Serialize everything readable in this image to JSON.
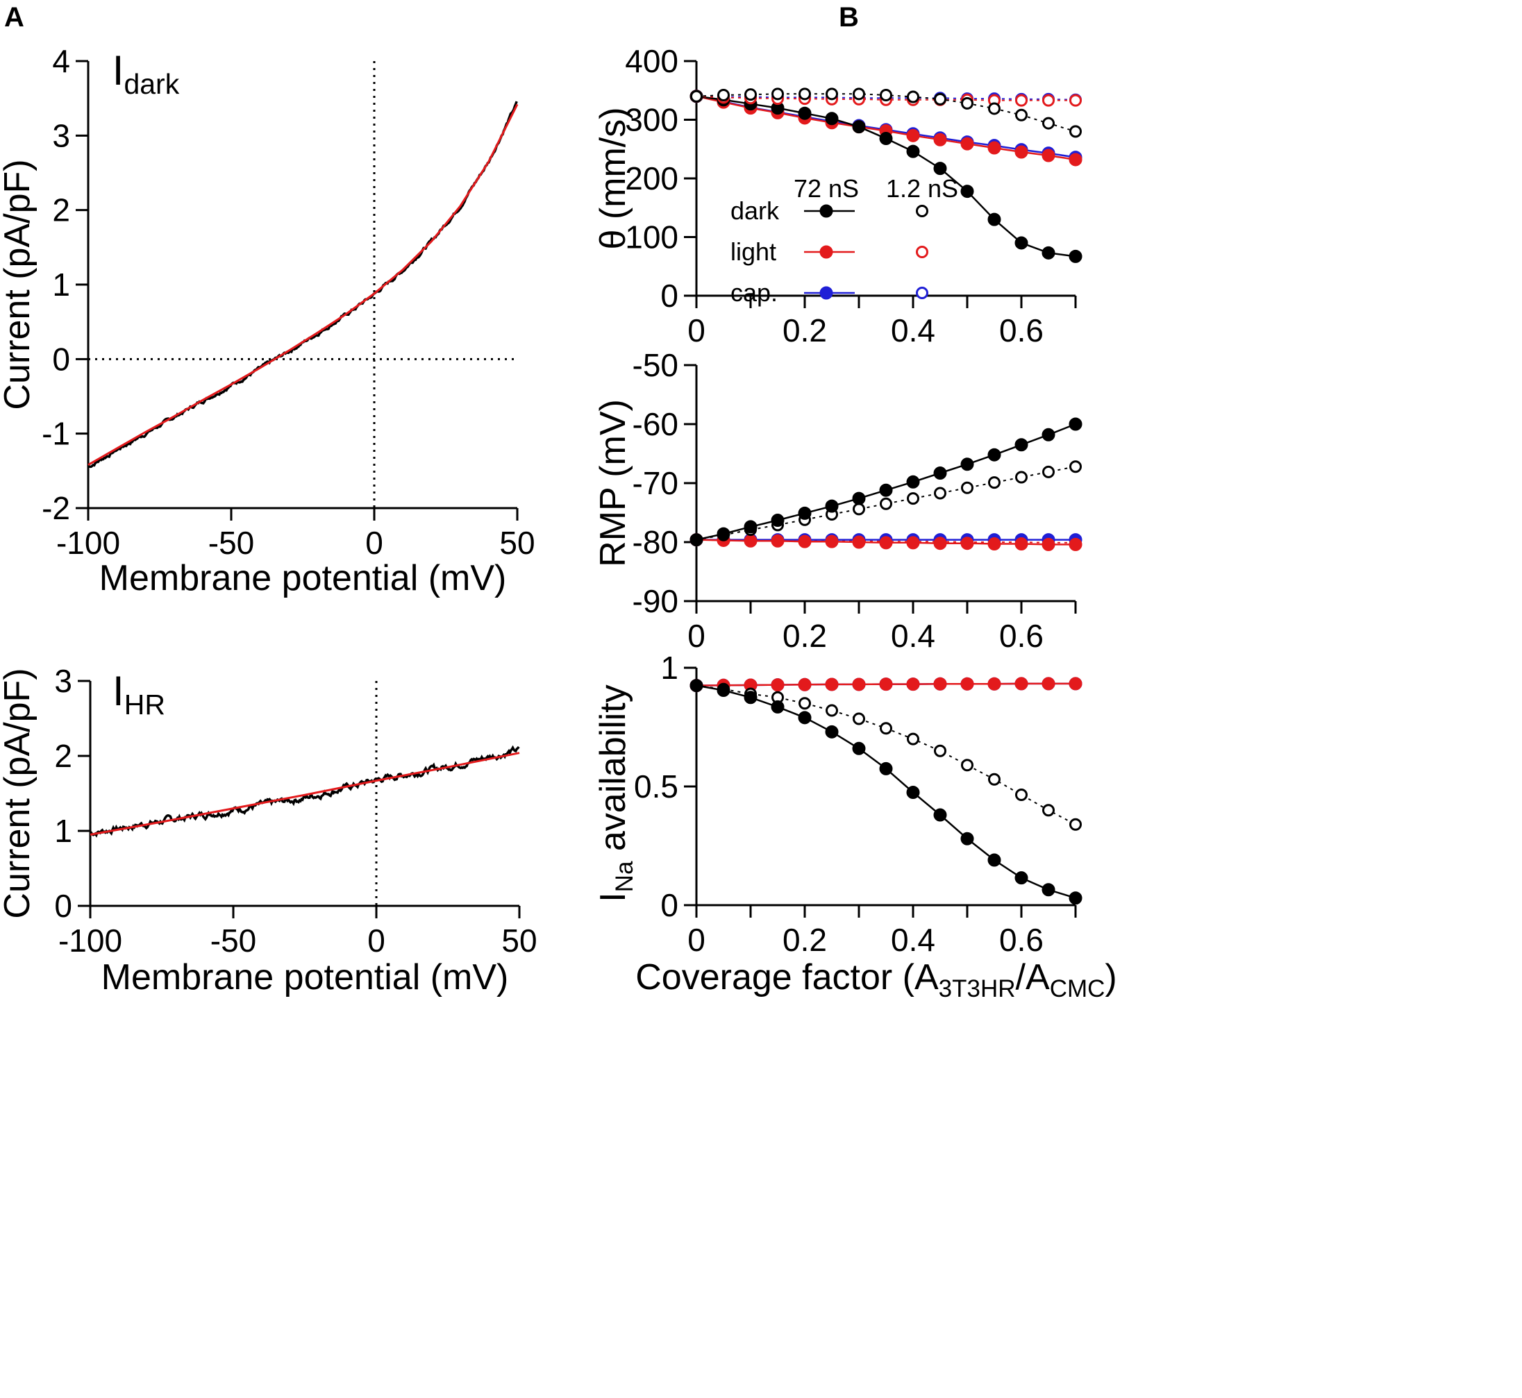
{
  "panels": {
    "a": "A",
    "b": "B"
  },
  "chart_data": [
    {
      "id": "idark",
      "type": "line",
      "label_main": "I",
      "label_sub": "dark",
      "xlabel": "Membrane potential (mV)",
      "ylabel": "Current (pA/pF)",
      "xlim": [
        -100,
        50
      ],
      "ylim": [
        -2,
        4
      ],
      "xticks": [
        -100,
        -50,
        0,
        50
      ],
      "yticks": [
        -2,
        -1,
        0,
        1,
        2,
        3,
        4
      ],
      "xtick_labels": [
        "-100",
        "-50",
        "0",
        "50"
      ],
      "ytick_labels": [
        "-2",
        "-1",
        "0",
        "1",
        "2",
        "3",
        "4"
      ],
      "reference_lines": {
        "x": 0,
        "y": 0,
        "style": "dotted"
      },
      "series": [
        {
          "name": "recorded",
          "color": "#000000",
          "noisy": true,
          "x": [
            -100,
            -90,
            -80,
            -70,
            -60,
            -50,
            -40,
            -30,
            -20,
            -10,
            0,
            10,
            20,
            30,
            40,
            50
          ],
          "y": [
            -1.45,
            -1.22,
            -1.0,
            -0.78,
            -0.56,
            -0.35,
            -0.13,
            0.1,
            0.34,
            0.59,
            0.87,
            1.19,
            1.58,
            2.05,
            2.65,
            3.45
          ]
        },
        {
          "name": "fit",
          "color": "#e31a1c",
          "noisy": false,
          "x": [
            -100,
            -90,
            -80,
            -70,
            -60,
            -50,
            -40,
            -30,
            -20,
            -10,
            0,
            10,
            20,
            30,
            40,
            50
          ],
          "y": [
            -1.42,
            -1.2,
            -0.98,
            -0.77,
            -0.55,
            -0.34,
            -0.12,
            0.11,
            0.35,
            0.6,
            0.88,
            1.2,
            1.58,
            2.05,
            2.65,
            3.42
          ]
        }
      ]
    },
    {
      "id": "ihr",
      "type": "line",
      "label_main": "I",
      "label_sub": "HR",
      "xlabel": "Membrane potential (mV)",
      "ylabel": "Current (pA/pF)",
      "xlim": [
        -100,
        50
      ],
      "ylim": [
        0,
        3
      ],
      "xticks": [
        -100,
        -50,
        0,
        50
      ],
      "yticks": [
        0,
        1,
        2,
        3
      ],
      "xtick_labels": [
        "-100",
        "-50",
        "0",
        "50"
      ],
      "ytick_labels": [
        "0",
        "1",
        "2",
        "3"
      ],
      "reference_lines": {
        "x": 0,
        "style": "dotted"
      },
      "series": [
        {
          "name": "recorded",
          "color": "#000000",
          "noisy": true,
          "x": [
            -100,
            -75,
            -50,
            -25,
            0,
            25,
            50
          ],
          "y": [
            0.97,
            1.13,
            1.28,
            1.44,
            1.68,
            1.86,
            2.08
          ]
        },
        {
          "name": "fit",
          "color": "#e31a1c",
          "noisy": false,
          "x": [
            -100,
            -75,
            -50,
            -25,
            0,
            25,
            50
          ],
          "y": [
            0.95,
            1.12,
            1.3,
            1.48,
            1.67,
            1.85,
            2.04
          ]
        }
      ]
    },
    {
      "id": "theta",
      "type": "line",
      "ylabel": "θ (mm/s)",
      "xlim": [
        0,
        0.7
      ],
      "ylim": [
        0,
        400
      ],
      "xticks": [
        0,
        0.1,
        0.2,
        0.3,
        0.4,
        0.5,
        0.6,
        0.7
      ],
      "xtick_labels": [
        "0",
        "0.2",
        "0.4",
        "0.6"
      ],
      "xtick_label_values": [
        0,
        0.2,
        0.4,
        0.6
      ],
      "yticks": [
        0,
        100,
        200,
        300,
        400
      ],
      "ytick_labels": [
        "0",
        "100",
        "200",
        "300",
        "400"
      ],
      "legend": {
        "col_header_1": "72 nS",
        "col_header_2": "1.2 nS",
        "rows": [
          {
            "label": "dark",
            "color": "#000000"
          },
          {
            "label": "light",
            "color": "#e31a1c"
          },
          {
            "label": "cap.",
            "color": "#1f1fd6"
          }
        ]
      },
      "x": [
        0,
        0.05,
        0.1,
        0.15,
        0.2,
        0.25,
        0.3,
        0.35,
        0.4,
        0.45,
        0.5,
        0.55,
        0.6,
        0.65,
        0.7
      ],
      "series": [
        {
          "name": "cap. 72 nS",
          "color": "#1f1fd6",
          "filled": true,
          "dashed": false,
          "values": [
            340,
            331,
            321,
            313,
            305,
            297,
            290,
            283,
            276,
            269,
            262,
            256,
            249,
            243,
            236
          ]
        },
        {
          "name": "light 72 nS",
          "color": "#e31a1c",
          "filled": true,
          "dashed": false,
          "values": [
            340,
            330,
            320,
            312,
            303,
            295,
            288,
            281,
            273,
            266,
            259,
            252,
            245,
            239,
            232
          ]
        },
        {
          "name": "dark 72 nS",
          "color": "#000000",
          "filled": true,
          "dashed": false,
          "values": [
            340,
            334,
            327,
            320,
            311,
            302,
            288,
            268,
            246,
            217,
            178,
            130,
            90,
            73,
            67
          ]
        },
        {
          "name": "cap. 1.2 nS",
          "color": "#1f1fd6",
          "filled": false,
          "dashed": true,
          "values": [
            340,
            339,
            339,
            338,
            338,
            338,
            337,
            337,
            337,
            337,
            336,
            336,
            335,
            335,
            334
          ]
        },
        {
          "name": "light 1.2 nS",
          "color": "#e31a1c",
          "filled": false,
          "dashed": true,
          "values": [
            340,
            338,
            337,
            336,
            336,
            335,
            335,
            334,
            334,
            334,
            334,
            333,
            333,
            333,
            333
          ]
        },
        {
          "name": "dark 1.2 nS",
          "color": "#000000",
          "filled": false,
          "dashed": true,
          "values": [
            340,
            342,
            343,
            344,
            344,
            344,
            344,
            342,
            339,
            335,
            328,
            319,
            308,
            294,
            280
          ]
        }
      ]
    },
    {
      "id": "rmp",
      "type": "line",
      "ylabel": "RMP (mV)",
      "xlim": [
        0,
        0.7
      ],
      "ylim": [
        -90,
        -50
      ],
      "xticks": [
        0,
        0.1,
        0.2,
        0.3,
        0.4,
        0.5,
        0.6,
        0.7
      ],
      "xtick_labels": [
        "0",
        "0.2",
        "0.4",
        "0.6"
      ],
      "xtick_label_values": [
        0,
        0.2,
        0.4,
        0.6
      ],
      "yticks": [
        -90,
        -80,
        -70,
        -60,
        -50
      ],
      "ytick_labels": [
        "-90",
        "-80",
        "-70",
        "-60",
        "-50"
      ],
      "x": [
        0,
        0.05,
        0.1,
        0.15,
        0.2,
        0.25,
        0.3,
        0.35,
        0.4,
        0.45,
        0.5,
        0.55,
        0.6,
        0.65,
        0.7
      ],
      "series": [
        {
          "name": "cap. 1.2 nS",
          "color": "#1f1fd6",
          "filled": false,
          "dashed": true,
          "values": [
            -79.6,
            -79.6,
            -79.6,
            -79.6,
            -79.6,
            -79.6,
            -79.6,
            -79.6,
            -79.6,
            -79.6,
            -79.6,
            -79.6,
            -79.6,
            -79.6,
            -79.6
          ]
        },
        {
          "name": "light 1.2 nS",
          "color": "#e31a1c",
          "filled": false,
          "dashed": true,
          "values": [
            -79.6,
            -79.7,
            -79.7,
            -79.7,
            -79.8,
            -79.8,
            -79.8,
            -79.9,
            -79.9,
            -79.9,
            -80.0,
            -80.0,
            -80.0,
            -80.1,
            -80.1
          ]
        },
        {
          "name": "cap. 72 nS",
          "color": "#1f1fd6",
          "filled": true,
          "dashed": false,
          "values": [
            -79.6,
            -79.6,
            -79.6,
            -79.6,
            -79.6,
            -79.6,
            -79.6,
            -79.6,
            -79.6,
            -79.6,
            -79.6,
            -79.6,
            -79.6,
            -79.6,
            -79.6
          ]
        },
        {
          "name": "light 72 nS",
          "color": "#e31a1c",
          "filled": true,
          "dashed": false,
          "values": [
            -79.6,
            -79.7,
            -79.8,
            -79.8,
            -79.9,
            -79.9,
            -80.0,
            -80.1,
            -80.1,
            -80.2,
            -80.2,
            -80.3,
            -80.3,
            -80.4,
            -80.4
          ]
        },
        {
          "name": "dark 1.2 nS",
          "color": "#000000",
          "filled": false,
          "dashed": true,
          "values": [
            -79.6,
            -78.8,
            -77.9,
            -77.1,
            -76.2,
            -75.3,
            -74.4,
            -73.5,
            -72.6,
            -71.7,
            -70.8,
            -69.9,
            -69.0,
            -68.1,
            -67.2
          ]
        },
        {
          "name": "dark 72 nS",
          "color": "#000000",
          "filled": true,
          "dashed": false,
          "values": [
            -79.6,
            -78.6,
            -77.4,
            -76.3,
            -75.1,
            -73.9,
            -72.6,
            -71.2,
            -69.8,
            -68.3,
            -66.8,
            -65.2,
            -63.5,
            -61.8,
            -60.0
          ]
        }
      ]
    },
    {
      "id": "ina",
      "type": "line",
      "ylabel_main": "I",
      "ylabel_sub": "Na",
      "ylabel_rest": " availability",
      "xlabel_main": "Coverage factor (A",
      "xlabel_sub1": "3T3HR",
      "xlabel_mid": "/A",
      "xlabel_sub2": "CMC",
      "xlabel_end": ")",
      "xlim": [
        0,
        0.7
      ],
      "ylim": [
        0,
        1
      ],
      "xticks": [
        0,
        0.1,
        0.2,
        0.3,
        0.4,
        0.5,
        0.6,
        0.7
      ],
      "xtick_labels": [
        "0",
        "0.2",
        "0.4",
        "0.6"
      ],
      "xtick_label_values": [
        0,
        0.2,
        0.4,
        0.6
      ],
      "yticks": [
        0,
        0.5,
        1
      ],
      "ytick_labels": [
        "0",
        "0.5",
        "1"
      ],
      "x": [
        0,
        0.05,
        0.1,
        0.15,
        0.2,
        0.25,
        0.3,
        0.35,
        0.4,
        0.45,
        0.5,
        0.55,
        0.6,
        0.65,
        0.7
      ],
      "series": [
        {
          "name": "cap. 1.2 nS",
          "color": "#1f1fd6",
          "filled": false,
          "dashed": true,
          "values": [
            0.925,
            0.926,
            0.927,
            0.928,
            0.929,
            0.93,
            0.93,
            0.931,
            0.931,
            0.932,
            0.932,
            0.932,
            0.933,
            0.933,
            0.933
          ]
        },
        {
          "name": "light 1.2 nS",
          "color": "#e31a1c",
          "filled": false,
          "dashed": true,
          "values": [
            0.925,
            0.926,
            0.927,
            0.928,
            0.929,
            0.93,
            0.93,
            0.931,
            0.931,
            0.932,
            0.932,
            0.932,
            0.933,
            0.933,
            0.933
          ]
        },
        {
          "name": "cap. 72 nS",
          "color": "#1f1fd6",
          "filled": true,
          "dashed": false,
          "values": [
            0.925,
            0.926,
            0.927,
            0.928,
            0.929,
            0.93,
            0.93,
            0.931,
            0.931,
            0.932,
            0.932,
            0.932,
            0.933,
            0.933,
            0.933
          ]
        },
        {
          "name": "light 72 nS",
          "color": "#e31a1c",
          "filled": true,
          "dashed": false,
          "values": [
            0.925,
            0.926,
            0.927,
            0.928,
            0.929,
            0.93,
            0.93,
            0.931,
            0.931,
            0.932,
            0.932,
            0.932,
            0.933,
            0.933,
            0.933
          ]
        },
        {
          "name": "dark 1.2 nS",
          "color": "#000000",
          "filled": false,
          "dashed": true,
          "values": [
            0.925,
            0.91,
            0.89,
            0.875,
            0.85,
            0.82,
            0.785,
            0.745,
            0.7,
            0.65,
            0.59,
            0.53,
            0.465,
            0.4,
            0.34
          ]
        },
        {
          "name": "dark 72 nS",
          "color": "#000000",
          "filled": true,
          "dashed": false,
          "values": [
            0.925,
            0.905,
            0.875,
            0.835,
            0.79,
            0.73,
            0.66,
            0.575,
            0.475,
            0.38,
            0.28,
            0.19,
            0.115,
            0.065,
            0.03
          ]
        }
      ]
    }
  ]
}
